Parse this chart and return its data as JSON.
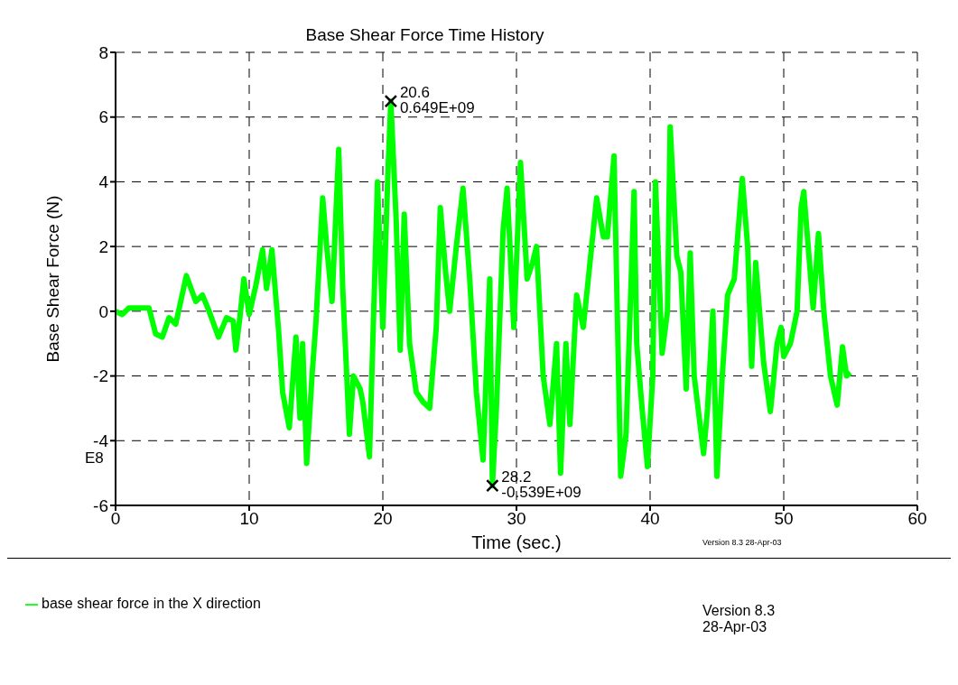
{
  "chart_data": {
    "type": "line",
    "title": "Base Shear Force Time History",
    "xlabel": "Time (sec.)",
    "ylabel": "Base Shear Force (N)",
    "xlim": [
      0,
      60
    ],
    "xticks": [
      0,
      10,
      20,
      30,
      40,
      50,
      60
    ],
    "ylim": [
      -6,
      8
    ],
    "yticks": [
      -6,
      -4,
      -2,
      0,
      2,
      4,
      6,
      8
    ],
    "grid": true,
    "legend": "bottom left",
    "series": [
      {
        "name": "base shear force in the X direction",
        "color": "#00ff00",
        "x": [
          0,
          0.5,
          1,
          2.5,
          3,
          3.5,
          4,
          4.5,
          5.3,
          6,
          6.5,
          7,
          7.7,
          8.3,
          8.8,
          9,
          9.3,
          9.6,
          10,
          10.5,
          11,
          11.3,
          11.7,
          12.2,
          12.5,
          13,
          13.5,
          13.8,
          14,
          14.3,
          14.7,
          15,
          15.5,
          15.8,
          16.2,
          16.7,
          17,
          17.5,
          17.8,
          18.3,
          18.5,
          19,
          19.6,
          20,
          20.4,
          20.6,
          21,
          21.3,
          21.6,
          22,
          22.5,
          23,
          23.5,
          24,
          24.3,
          24.7,
          25,
          25.5,
          26,
          26.5,
          27,
          27.5,
          28,
          28.2,
          28.5,
          29,
          29.3,
          29.8,
          30.3,
          30.8,
          31.2,
          31.5,
          32,
          32.5,
          33,
          33.3,
          33.7,
          34,
          34.5,
          35,
          35.5,
          36,
          36.5,
          36.8,
          37.3,
          37.8,
          38.2,
          38.8,
          39,
          39.4,
          39.8,
          40.2,
          40.4,
          40.9,
          41.3,
          41.5,
          42,
          42.3,
          42.7,
          43,
          43.3,
          44,
          44.3,
          44.7,
          45,
          45.4,
          45.8,
          46.3,
          46.9,
          47.3,
          47.6,
          47.9,
          48.5,
          49,
          49.5,
          49.8,
          50,
          50.5,
          51,
          51.3,
          51.5,
          52.2,
          52.6,
          53,
          53.5,
          54,
          54.4,
          54.7,
          55
        ],
        "values": [
          0,
          -0.1,
          0.1,
          0.1,
          -0.7,
          -0.8,
          -0.2,
          -0.4,
          1.1,
          0.3,
          0.5,
          0,
          -0.8,
          -0.2,
          -0.3,
          -1.2,
          -0.2,
          1,
          -0.1,
          0.8,
          1.9,
          0.7,
          1.9,
          -0.6,
          -2.5,
          -3.6,
          -0.8,
          -3.3,
          -1,
          -4.7,
          -2,
          -0.3,
          3.5,
          2,
          0.3,
          5,
          0.7,
          -3.8,
          -2,
          -2.4,
          -2.8,
          -4.5,
          4,
          -0.5,
          4.5,
          6.49,
          2.8,
          -1.2,
          3,
          -1,
          -2.5,
          -2.8,
          -3,
          -0.5,
          3.2,
          1.2,
          0,
          2,
          3.8,
          1,
          -2.5,
          -4.6,
          1,
          -5.39,
          -3,
          2.5,
          3.8,
          -0.5,
          4.6,
          1,
          1.5,
          2,
          -2,
          -3.5,
          -1,
          -5,
          -1,
          -3.5,
          0.5,
          -0.5,
          1.5,
          3.5,
          2.3,
          2.3,
          4.8,
          -5.1,
          -3.8,
          3.7,
          -1,
          -3,
          -4.8,
          -2,
          4,
          -1.3,
          0,
          5.7,
          1.7,
          1.2,
          -2.4,
          1.8,
          -2,
          -4.4,
          -3,
          0,
          -5.1,
          -2,
          0.5,
          1,
          4.1,
          2,
          -1.7,
          1.5,
          -1.6,
          -3.1,
          -1,
          -0.5,
          -1.4,
          -1,
          0,
          3.2,
          3.7,
          0.1,
          2.4,
          0,
          -2,
          -2.9,
          -1.1,
          -2,
          -1.9
        ]
      }
    ],
    "annotations": [
      {
        "text": "20.6\n0.649E+09",
        "x": 20.6,
        "y": 6.49
      },
      {
        "text": "28.2\n-0.539E+09",
        "x": 28.2,
        "y": -5.39
      },
      "E8",
      "Version 8.3  28-Apr-03",
      "Version 8.3\n28-Apr-03"
    ]
  }
}
